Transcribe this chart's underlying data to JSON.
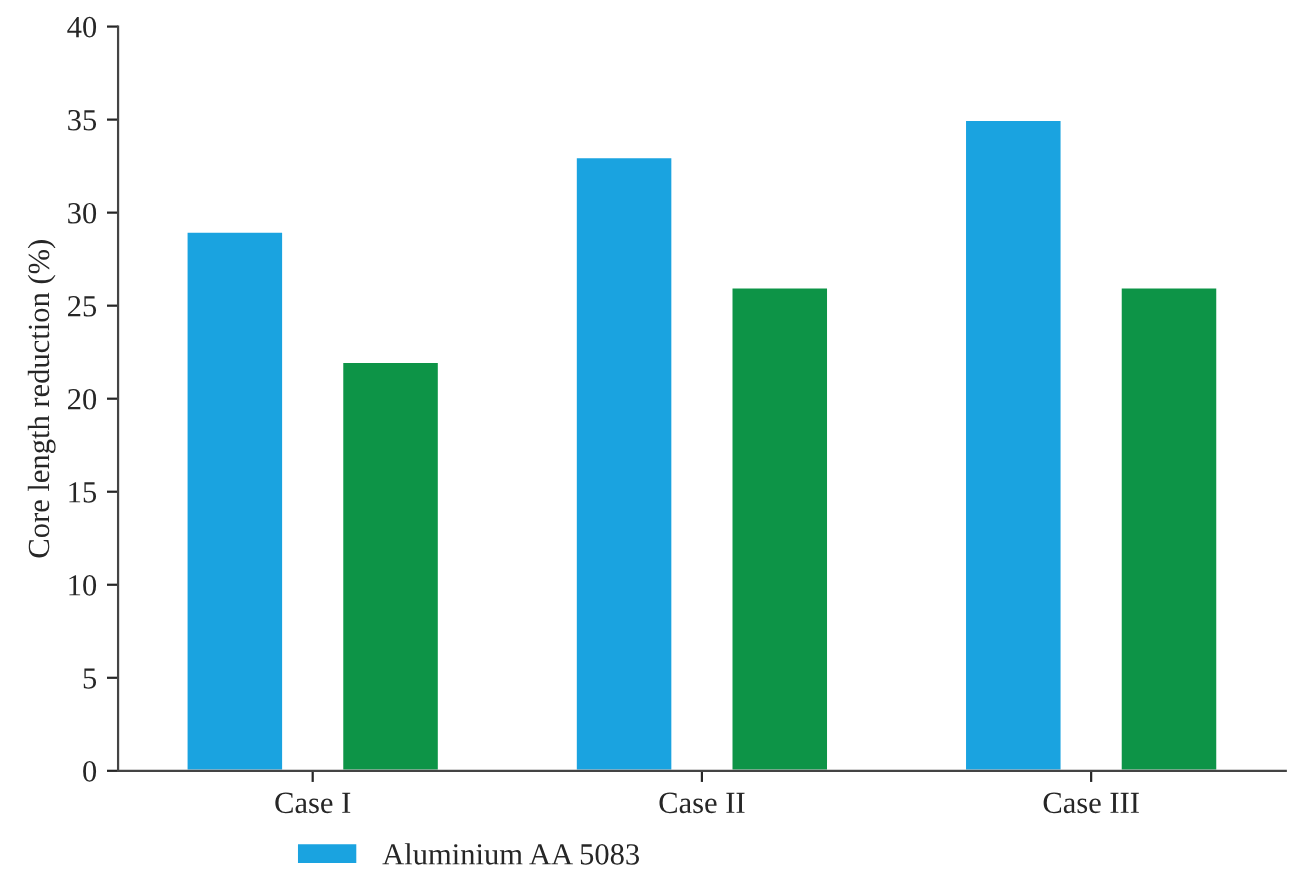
{
  "chart_data": {
    "type": "bar",
    "ylabel": "Core length reduction (%)",
    "categories": [
      "Case I",
      "Case II",
      "Case III"
    ],
    "series": [
      {
        "name": "Aluminium AA 5083",
        "color": "#1aa3e0",
        "values": [
          29,
          33,
          35
        ]
      },
      {
        "color": "#0d9447",
        "values": [
          22,
          26,
          26
        ]
      }
    ],
    "ylim": [
      0,
      40
    ],
    "yticks": [
      0,
      5,
      10,
      15,
      20,
      25,
      30,
      35,
      40
    ],
    "grid": false,
    "legend": "bottom"
  }
}
